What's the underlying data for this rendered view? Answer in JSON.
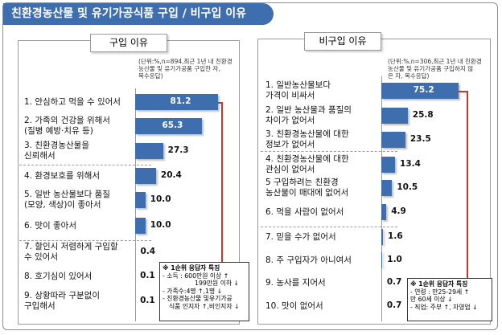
{
  "title": "친환경농산물 및 유기가공식품 구입 / 비구입 이유",
  "colors": {
    "bar": "#3f6eaf",
    "connector": "#c0392b",
    "banner": "#3f6eaf"
  },
  "left_panel": {
    "header": "구입 이유",
    "note": "(단위:%,n=894,최근 1년 내 친환경\n농산물 및 유기가공품 구입한 자,\n복수응답)",
    "callout": [
      "※ 1순위 응답자 특징",
      "- 소득 : 600만원 이상 ↑",
      "199만원 이하 ↓",
      "- 가족수:4명 ↑,1명 ↓",
      "- 친환경농산물 및유기가공",
      "식품 인지자 ↑,비인지자 ↓"
    ]
  },
  "right_panel": {
    "header": "비구입 이유",
    "note": "(단위:%,n=306,최근 1년 내 친환경\n농산물 및 유기가공품 구입하지 않\n은 자, 복수응답)",
    "callout": [
      "※ 1순위 응답자 특징",
      "- 연령 : 만25-29세 ↑",
      "만 60세 이상 ↓",
      "- 직업: 주부 ↑, 자영업 ↓"
    ]
  },
  "chart_data": [
    {
      "type": "bar",
      "orientation": "horizontal",
      "title": "구입 이유",
      "categories": [
        "1. 안심하고 먹을 수 있어서",
        "2. 가족의 건강을 위해서\n(질병 예방·치유 등)",
        "3. 친환경농산물을\n신뢰해서",
        "4. 환경보호를 위해서",
        "5. 일반 농산물보다 품질\n(모양, 색상)이 좋아서",
        "6. 맛이 좋아서",
        "7. 할인시 저렴하게 구입할\n수 있어서",
        "8. 호기심이 있어서",
        "9. 상황따라 구분없이\n구입해서"
      ],
      "values": [
        81.2,
        65.3,
        27.3,
        20.4,
        10.0,
        10.0,
        0.4,
        0.1,
        0.1
      ],
      "labels": [
        "81.2",
        "65.3",
        "27.3",
        "20.4",
        "10.0",
        "10.0",
        "0.4",
        "0.1",
        "0.1"
      ],
      "unit": "%"
    },
    {
      "type": "bar",
      "orientation": "horizontal",
      "title": "비구입 이유",
      "categories": [
        "1. 일반농산물보다\n가격이 비싸서",
        "2. 일반 농산물과 품질의\n차이가 없어서",
        "3. 친환경농산물에 대한\n정보가 없어서",
        "4. 친환경농산물에 대한\n관심이 없어서",
        "5 구입하려는 친환경\n농산물이 매대에 없어서",
        "6. 먹을 사람이 없어서",
        "7. 믿을 수가 없어서",
        "8. 주 구입자가 아니여서",
        "9. 농사를 지어서",
        "10. 맛이 없어서"
      ],
      "values": [
        75.2,
        25.8,
        23.5,
        13.4,
        10.5,
        4.9,
        1.6,
        1.0,
        0.7,
        0.7
      ],
      "labels": [
        "75.2",
        "25.8",
        "23.5",
        "13.4",
        "10.5",
        "4.9",
        "1.6",
        "1.0",
        "0.7",
        "0.7"
      ],
      "unit": "%"
    }
  ]
}
